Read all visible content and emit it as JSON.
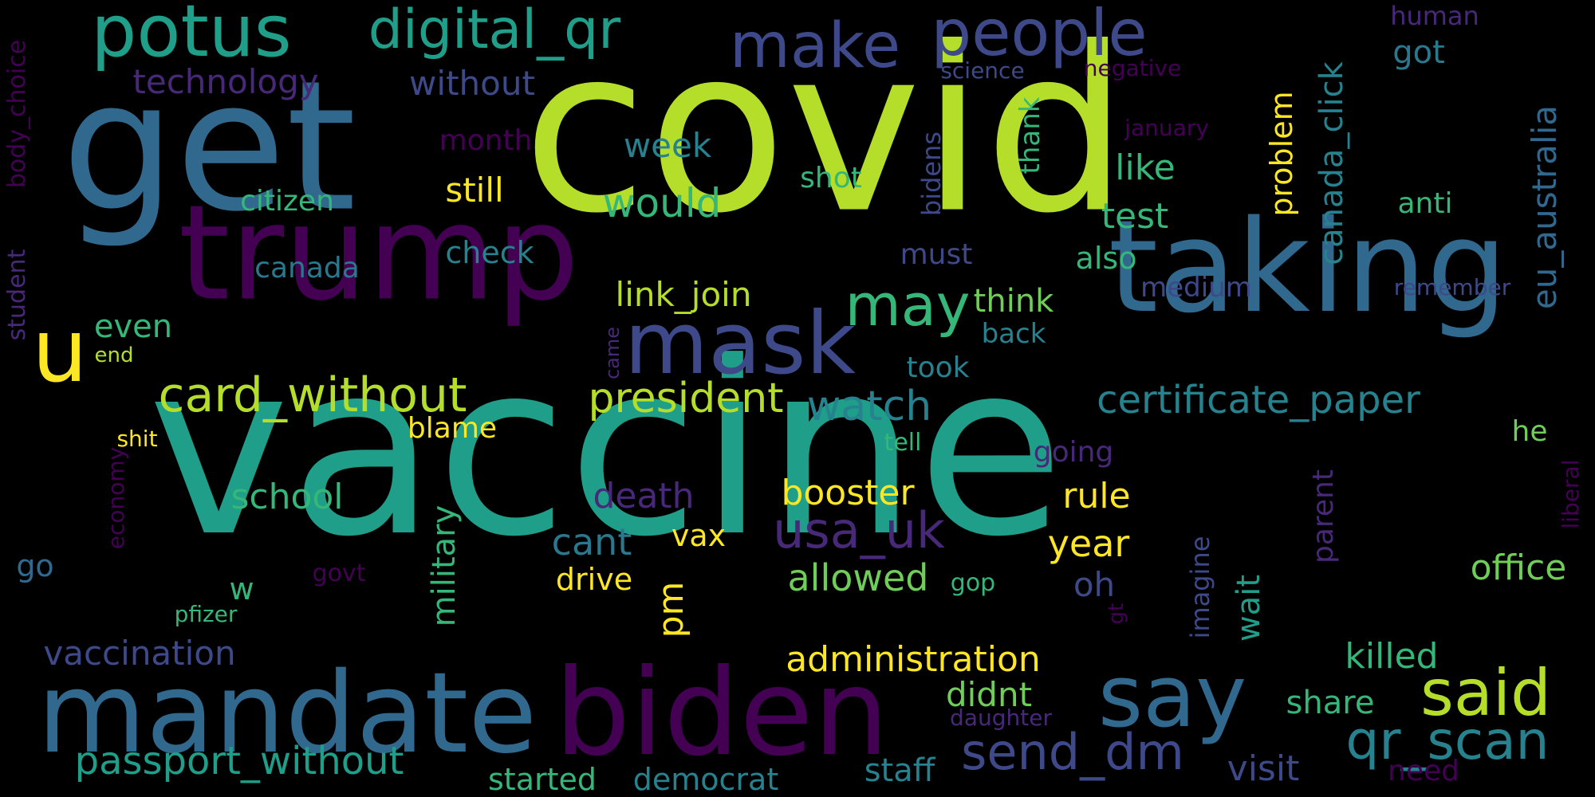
{
  "background": "#000000",
  "palette": {
    "c1": "#b5de2b",
    "c2": "#1f9e89",
    "c3": "#31688e",
    "c4": "#440154",
    "c5": "#482878",
    "c6": "#3e4989",
    "c7": "#26828e",
    "c8": "#6ece58",
    "c9": "#fde725",
    "c10": "#35b779",
    "c11": "#46327e",
    "c12": "#2a788e"
  },
  "words": [
    {
      "text": "vaccine",
      "color": "c2"
    },
    {
      "text": "covid",
      "color": "c1"
    },
    {
      "text": "get",
      "color": "c3"
    },
    {
      "text": "trump",
      "color": "c4"
    },
    {
      "text": "taking",
      "color": "c3"
    },
    {
      "text": "biden",
      "color": "c4"
    },
    {
      "text": "mandate",
      "color": "c3"
    },
    {
      "text": "mask",
      "color": "c6"
    },
    {
      "text": "potus",
      "color": "c2"
    },
    {
      "text": "say",
      "color": "c3"
    },
    {
      "text": "people",
      "color": "c6"
    },
    {
      "text": "digital_qr",
      "color": "c2"
    },
    {
      "text": "make",
      "color": "c6"
    },
    {
      "text": "card_without",
      "color": "c1"
    },
    {
      "text": "said",
      "color": "c1"
    },
    {
      "text": "qr_scan",
      "color": "c7"
    },
    {
      "text": "passport_without",
      "color": "c2"
    },
    {
      "text": "send_dm",
      "color": "c6"
    },
    {
      "text": "may",
      "color": "c10"
    },
    {
      "text": "usa_uk",
      "color": "c5"
    },
    {
      "text": "certificate_paper",
      "color": "c7"
    },
    {
      "text": "eu_australia",
      "color": "c3"
    },
    {
      "text": "u",
      "color": "c9"
    },
    {
      "text": "president",
      "color": "c1"
    },
    {
      "text": "watch",
      "color": "c7"
    },
    {
      "text": "would",
      "color": "c10"
    },
    {
      "text": "administration",
      "color": "c9"
    },
    {
      "text": "vaccination",
      "color": "c6"
    },
    {
      "text": "technology",
      "color": "c5"
    },
    {
      "text": "without",
      "color": "c6"
    },
    {
      "text": "canada_click",
      "color": "c7"
    },
    {
      "text": "military",
      "color": "c10"
    },
    {
      "text": "link_join",
      "color": "c1"
    },
    {
      "text": "cant",
      "color": "c12"
    },
    {
      "text": "allowed",
      "color": "c8"
    },
    {
      "text": "booster",
      "color": "c9"
    },
    {
      "text": "death",
      "color": "c5"
    },
    {
      "text": "school",
      "color": "c10"
    },
    {
      "text": "year",
      "color": "c9"
    },
    {
      "text": "rule",
      "color": "c9"
    },
    {
      "text": "problem",
      "color": "c9"
    },
    {
      "text": "office",
      "color": "c8"
    },
    {
      "text": "killed",
      "color": "c10"
    },
    {
      "text": "test",
      "color": "c10"
    },
    {
      "text": "like",
      "color": "c10"
    },
    {
      "text": "week",
      "color": "c7"
    },
    {
      "text": "still",
      "color": "c9"
    },
    {
      "text": "visit",
      "color": "c6"
    },
    {
      "text": "share",
      "color": "c10"
    },
    {
      "text": "staff",
      "color": "c7"
    },
    {
      "text": "didnt",
      "color": "c8"
    },
    {
      "text": "think",
      "color": "c8"
    },
    {
      "text": "got",
      "color": "c12"
    },
    {
      "text": "student",
      "color": "c5"
    },
    {
      "text": "body_choice",
      "color": "c4"
    },
    {
      "text": "citizen",
      "color": "c10"
    },
    {
      "text": "month",
      "color": "c4"
    },
    {
      "text": "check",
      "color": "c7"
    },
    {
      "text": "canada",
      "color": "c12"
    },
    {
      "text": "even",
      "color": "c10"
    },
    {
      "text": "pm",
      "color": "c9"
    },
    {
      "text": "wait",
      "color": "c2"
    },
    {
      "text": "oh",
      "color": "c6"
    },
    {
      "text": "drive",
      "color": "c9"
    },
    {
      "text": "vax",
      "color": "c9"
    },
    {
      "text": "w",
      "color": "c10"
    },
    {
      "text": "started",
      "color": "c10"
    },
    {
      "text": "democrat",
      "color": "c7"
    },
    {
      "text": "blame",
      "color": "c9"
    },
    {
      "text": "going",
      "color": "c5"
    },
    {
      "text": "shot",
      "color": "c10"
    },
    {
      "text": "medium",
      "color": "c6"
    },
    {
      "text": "back",
      "color": "c7"
    },
    {
      "text": "also",
      "color": "c10"
    },
    {
      "text": "must",
      "color": "c6"
    },
    {
      "text": "took",
      "color": "c7"
    },
    {
      "text": "thank",
      "color": "c10"
    },
    {
      "text": "bidens",
      "color": "c6"
    },
    {
      "text": "anti",
      "color": "c10"
    },
    {
      "text": "he",
      "color": "c8"
    },
    {
      "text": "human",
      "color": "c5"
    },
    {
      "text": "science",
      "color": "c6"
    },
    {
      "text": "negative",
      "color": "c4"
    },
    {
      "text": "january",
      "color": "c4"
    },
    {
      "text": "remember",
      "color": "c6"
    },
    {
      "text": "imagine",
      "color": "c6"
    },
    {
      "text": "parent",
      "color": "c5"
    },
    {
      "text": "need",
      "color": "c4"
    },
    {
      "text": "daughter",
      "color": "c5"
    },
    {
      "text": "gop",
      "color": "c10"
    },
    {
      "text": "tell",
      "color": "c10"
    },
    {
      "text": "govt",
      "color": "c4"
    },
    {
      "text": "economy",
      "color": "c4"
    },
    {
      "text": "liberal",
      "color": "c4"
    },
    {
      "text": "pfizer",
      "color": "c10"
    },
    {
      "text": "shit",
      "color": "c9"
    },
    {
      "text": "go",
      "color": "c3"
    },
    {
      "text": "end",
      "color": "c1"
    },
    {
      "text": "came",
      "color": "c5"
    },
    {
      "text": "gt",
      "color": "c4"
    }
  ]
}
